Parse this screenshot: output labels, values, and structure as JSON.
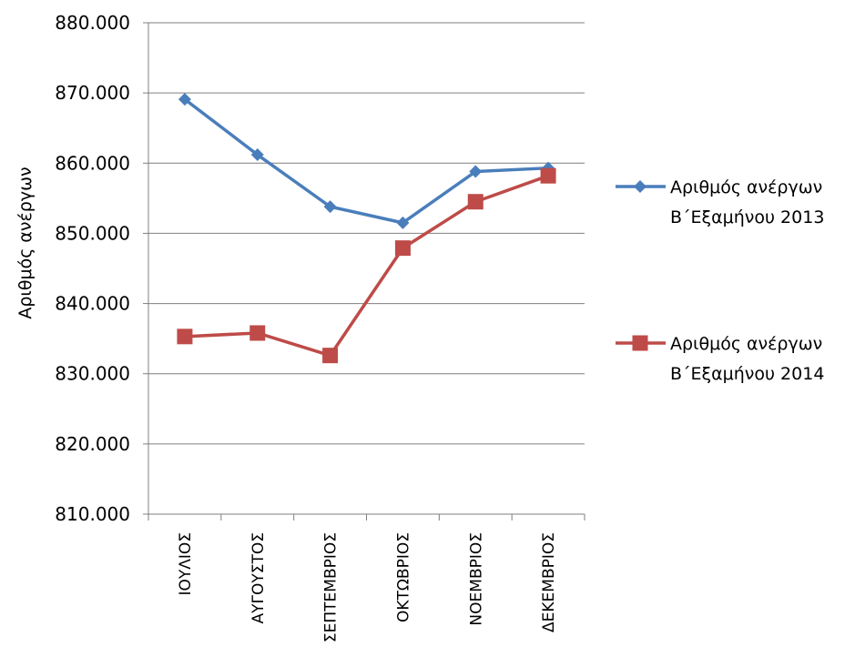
{
  "chart_data": {
    "type": "line",
    "title": "",
    "xlabel": "",
    "ylabel": "Αριθμός ανέργων",
    "categories": [
      "ΙΟΥΛΙΟΣ",
      "ΑΥΓΟΥΣΤΟΣ",
      "ΣΕΠΤΕΜΒΡΙΟΣ",
      "ΟΚΤΩΒΡΙΟΣ",
      "ΝΟΕΜΒΡΙΟΣ",
      "ΔΕΚΕΜΒΡΙΟΣ"
    ],
    "ylim": [
      810000,
      880000
    ],
    "yticks": [
      810000,
      820000,
      830000,
      840000,
      850000,
      860000,
      870000,
      880000
    ],
    "ytick_labels": [
      "810.000",
      "820.000",
      "830.000",
      "840.000",
      "850.000",
      "860.000",
      "870.000",
      "880.000"
    ],
    "grid": true,
    "legend_position": "right",
    "series": [
      {
        "name_line1": "Αριθμός ανέργων",
        "name_line2": "Β΄Εξαμήνου 2013",
        "color": "#4a7ebb",
        "marker": "diamond",
        "values": [
          869100,
          861200,
          853800,
          851500,
          858800,
          859300
        ]
      },
      {
        "name_line1": "Αριθμός ανέργων",
        "name_line2": "Β΄Εξαμήνου 2014",
        "color": "#be4b48",
        "marker": "square",
        "values": [
          835300,
          835800,
          832600,
          847900,
          854500,
          858200
        ]
      }
    ]
  }
}
